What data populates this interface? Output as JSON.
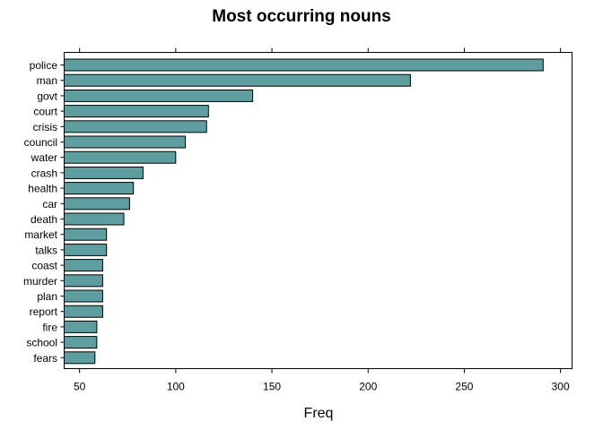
{
  "chart_data": {
    "type": "bar",
    "orientation": "horizontal",
    "title": "Most occurring nouns",
    "xlabel": "Freq",
    "ylabel": "",
    "xlim": [
      42,
      306
    ],
    "xticks": [
      50,
      100,
      150,
      200,
      250,
      300
    ],
    "grid": false,
    "legend": "none",
    "bar_color": "#5f9ea0",
    "categories": [
      "police",
      "man",
      "govt",
      "court",
      "crisis",
      "council",
      "water",
      "crash",
      "health",
      "car",
      "death",
      "market",
      "talks",
      "coast",
      "murder",
      "plan",
      "report",
      "fire",
      "school",
      "fears"
    ],
    "values": [
      291,
      222,
      140,
      117,
      116,
      105,
      100,
      83,
      78,
      76,
      73,
      64,
      64,
      62,
      62,
      62,
      62,
      59,
      59,
      58
    ]
  }
}
